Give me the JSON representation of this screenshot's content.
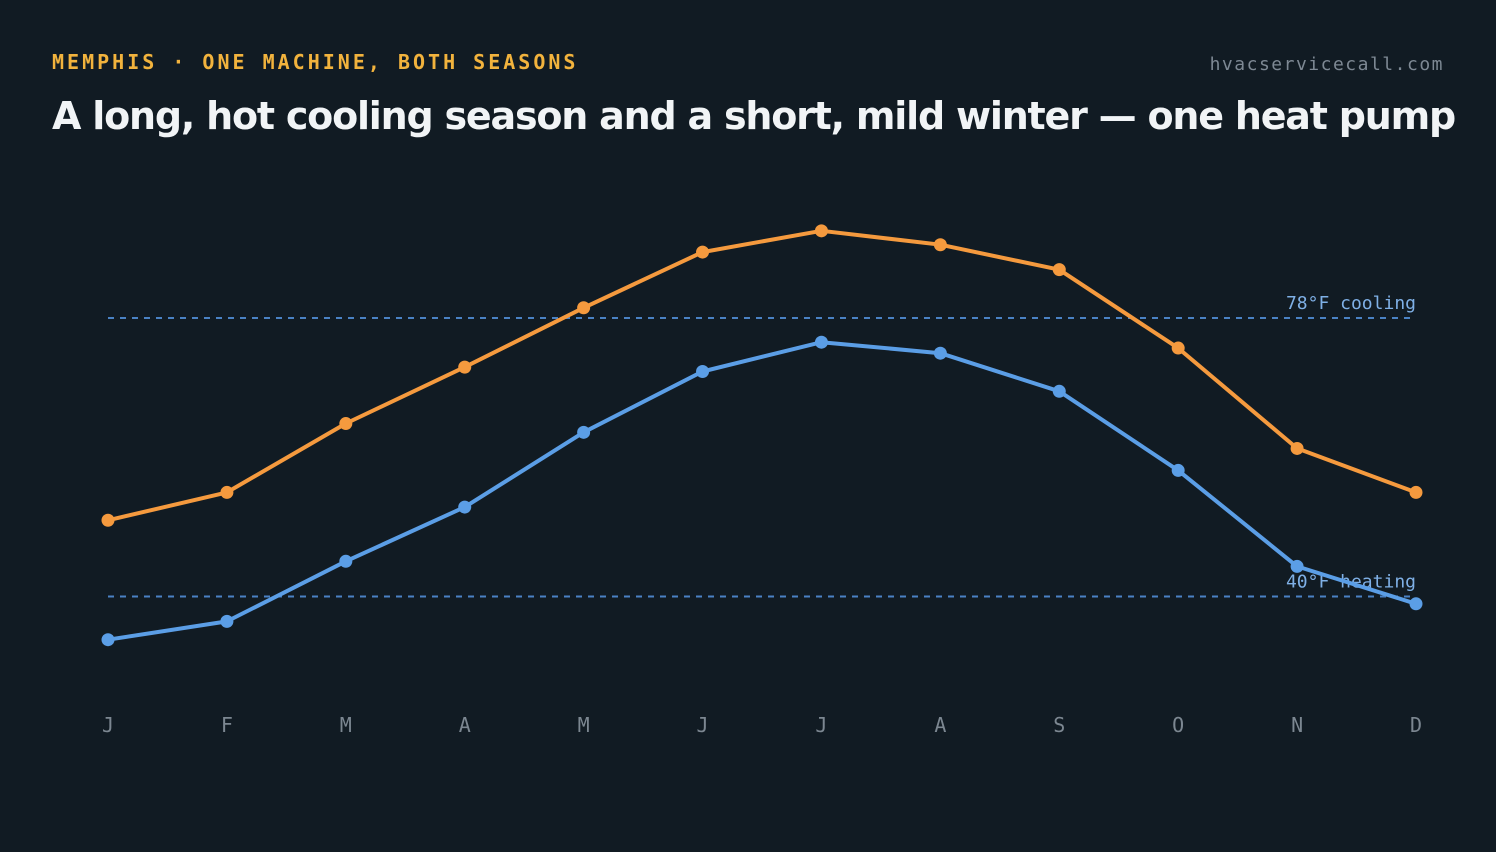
{
  "header": {
    "eyebrow": "MEMPHIS · ONE MACHINE, BOTH SEASONS",
    "site": "hvacservicecall.com",
    "headline": "A long, hot cooling season and a short, mild winter — one heat pump"
  },
  "colors": {
    "background": "#111b23",
    "eyebrow": "#f2b33d",
    "high_series": "#f59a3e",
    "low_series": "#5b9ee6",
    "reference_line": "#4a82c4",
    "reference_text": "#7fb0e6",
    "tick_text": "#7c8791"
  },
  "chart_data": {
    "type": "line",
    "title": "",
    "xlabel": "",
    "ylabel": "",
    "categories": [
      "J",
      "F",
      "M",
      "A",
      "M",
      "J",
      "J",
      "A",
      "S",
      "O",
      "N",
      "D"
    ],
    "series": [
      {
        "key": "high",
        "values": [
          50.4,
          54.2,
          63.6,
          71.3,
          79.4,
          87.0,
          89.9,
          88.0,
          84.6,
          73.9,
          60.2,
          54.2
        ]
      },
      {
        "key": "low",
        "values": [
          34.1,
          36.6,
          44.8,
          52.2,
          62.4,
          70.7,
          74.7,
          73.2,
          68.0,
          57.2,
          44.1,
          39.0
        ]
      }
    ],
    "reference_lines": [
      {
        "value": 78,
        "label": "78°F cooling"
      },
      {
        "value": 40,
        "label": "40°F heating"
      }
    ],
    "ylim": [
      28.6,
      98.2
    ],
    "grid": false,
    "legend": "none"
  }
}
